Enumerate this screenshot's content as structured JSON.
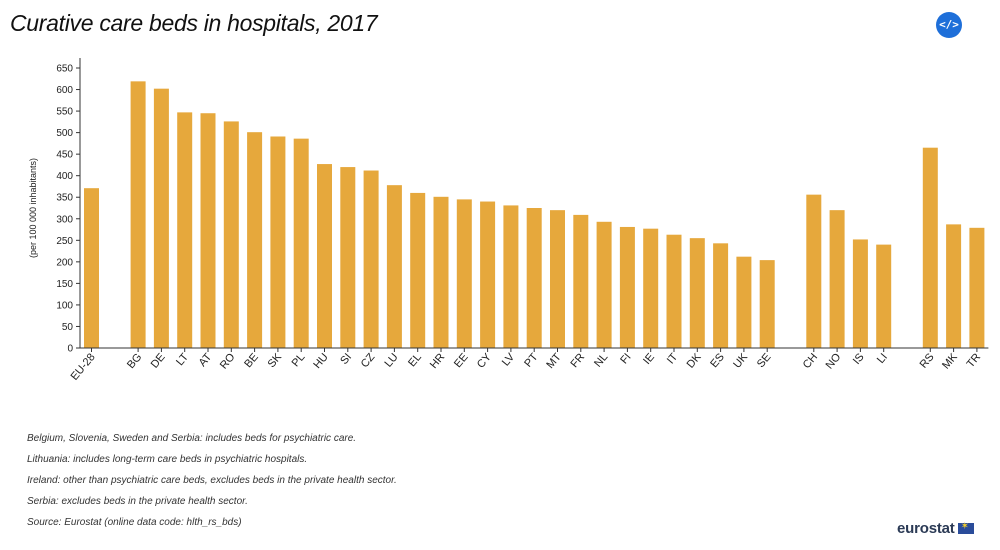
{
  "header": {
    "title": "Curative care beds in hospitals, 2017",
    "embed_icon_label": "</>"
  },
  "colors": {
    "bar": "#E6A83C",
    "axis": "#333333",
    "embed_button": "#1E6FD9"
  },
  "chart_data": {
    "type": "bar",
    "title": "Curative care beds in hospitals, 2017",
    "xlabel": "",
    "ylabel": "(per 100 000 inhabitants)",
    "ylim": [
      0,
      650
    ],
    "yticks": [
      0,
      50,
      100,
      150,
      200,
      250,
      300,
      350,
      400,
      450,
      500,
      550,
      600,
      650
    ],
    "groups": [
      {
        "categories": [
          "EU-28"
        ],
        "values": [
          371
        ]
      },
      {
        "categories": [
          "BG",
          "DE",
          "LT",
          "AT",
          "RO",
          "BE",
          "SK",
          "PL",
          "HU",
          "SI",
          "CZ",
          "LU",
          "EL",
          "HR",
          "EE",
          "CY",
          "LV",
          "PT",
          "MT",
          "FR",
          "NL",
          "FI",
          "IE",
          "IT",
          "DK",
          "ES",
          "UK",
          "SE"
        ],
        "values": [
          619,
          602,
          547,
          545,
          526,
          501,
          491,
          486,
          427,
          420,
          412,
          378,
          360,
          351,
          345,
          340,
          331,
          325,
          320,
          309,
          293,
          281,
          277,
          263,
          255,
          243,
          212,
          204
        ]
      },
      {
        "categories": [
          "CH",
          "NO",
          "IS",
          "LI"
        ],
        "values": [
          356,
          320,
          252,
          240
        ]
      },
      {
        "categories": [
          "RS",
          "MK",
          "TR"
        ],
        "values": [
          465,
          287,
          279
        ]
      }
    ]
  },
  "footnotes": [
    "Belgium, Slovenia, Sweden and Serbia: includes beds for psychiatric care.",
    "Lithuania: includes long-term care beds in psychiatric hospitals.",
    "Ireland: other than psychiatric care beds, excludes beds in the private health sector.",
    "Serbia: excludes beds in the private health sector.",
    "Source: Eurostat (online data code: hlth_rs_bds)"
  ],
  "logo": {
    "text": "eurostat"
  }
}
